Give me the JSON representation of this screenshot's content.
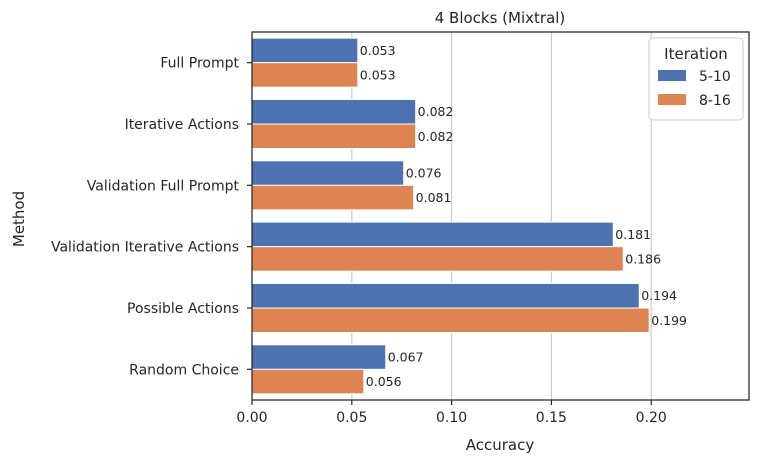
{
  "chart_data": {
    "type": "bar",
    "orientation": "horizontal",
    "title": "4 Blocks (Mixtral)",
    "xlabel": "Accuracy",
    "ylabel": "Method",
    "categories": [
      "Full Prompt",
      "Iterative Actions",
      "Validation Full Prompt",
      "Validation Iterative Actions",
      "Possible Actions",
      "Random Choice"
    ],
    "series": [
      {
        "name": "5-10",
        "color": "#4c72b0",
        "values": [
          0.053,
          0.082,
          0.076,
          0.181,
          0.194,
          0.067
        ],
        "labels": [
          "0.053",
          "0.082",
          "0.076",
          "0.181",
          "0.194",
          "0.067"
        ]
      },
      {
        "name": "8-16",
        "color": "#dd8452",
        "values": [
          0.053,
          0.082,
          0.081,
          0.186,
          0.199,
          0.056
        ],
        "labels": [
          "0.053",
          "0.082",
          "0.081",
          "0.186",
          "0.199",
          "0.056"
        ]
      }
    ],
    "xlim": [
      0,
      0.249
    ],
    "xticks": [
      0.0,
      0.05,
      0.1,
      0.15,
      0.2
    ],
    "xtick_labels": [
      "0.00",
      "0.05",
      "0.10",
      "0.15",
      "0.20"
    ],
    "grid": "vertical",
    "legend": {
      "title": "Iteration",
      "position": "top-right"
    }
  }
}
